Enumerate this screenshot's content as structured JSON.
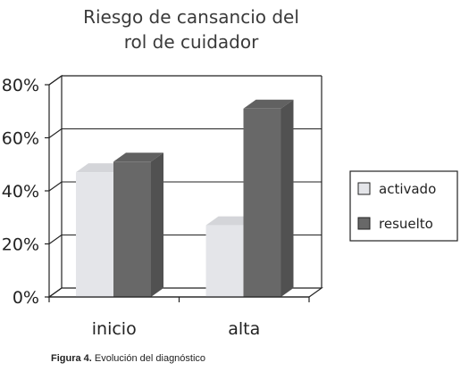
{
  "chart_data": {
    "type": "bar",
    "title_lines": [
      "Riesgo de cansancio del",
      "rol de cuidador"
    ],
    "categories": [
      "inicio",
      "alta"
    ],
    "series": [
      {
        "name": "activado",
        "color": "#e4e5e9",
        "values": [
          47,
          27
        ]
      },
      {
        "name": "resuelto",
        "color": "#686868",
        "values": [
          51,
          71
        ]
      }
    ],
    "yticks": [
      "0%",
      "20%",
      "40%",
      "60%",
      "80%"
    ],
    "ylim": [
      0,
      80
    ],
    "grid": true,
    "legend": "right",
    "three_d": true
  },
  "caption": {
    "label": "Figura 4.",
    "text": " Evolución del diagnóstico"
  }
}
